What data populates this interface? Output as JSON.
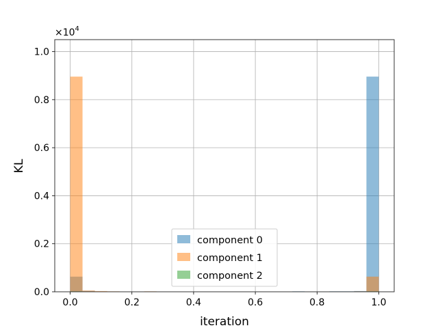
{
  "chart_data": {
    "type": "bar",
    "histogram": true,
    "xlabel": "iteration",
    "ylabel": "KL",
    "y_scale_label": "×10",
    "y_scale_exponent": "4",
    "xlim": [
      -0.05,
      1.05
    ],
    "ylim": [
      0,
      1.05
    ],
    "grid": true,
    "legend_position": "lower-center",
    "x_ticks": [
      0.0,
      0.2,
      0.4,
      0.6,
      0.8,
      1.0
    ],
    "x_tick_labels": [
      "0.0",
      "0.2",
      "0.4",
      "0.6",
      "0.8",
      "1.0"
    ],
    "y_ticks": [
      0.0,
      0.2,
      0.4,
      0.6,
      0.8,
      1.0
    ],
    "y_tick_labels": [
      "0.0",
      "0.2",
      "0.4",
      "0.6",
      "0.8",
      "1.0"
    ],
    "bin_edges": [
      0.0,
      0.04,
      0.08,
      0.12,
      0.16,
      0.2,
      0.24,
      0.28,
      0.32,
      0.36,
      0.4,
      0.44,
      0.48,
      0.52,
      0.56,
      0.6,
      0.64,
      0.68,
      0.72,
      0.76,
      0.8,
      0.84,
      0.88,
      0.92,
      0.96,
      1.0
    ],
    "series": [
      {
        "name": "component 0",
        "color": "#1f77b4",
        "values": [
          0.063,
          0.004,
          0,
          0,
          0,
          0,
          0,
          0,
          0,
          0,
          0,
          0,
          0,
          0,
          0,
          0,
          0,
          0,
          0.002,
          0,
          0,
          0.002,
          0.002,
          0.003,
          0.896
        ]
      },
      {
        "name": "component 1",
        "color": "#ff7f0e",
        "values": [
          0.896,
          0.005,
          0.003,
          0.002,
          0,
          0,
          0.002,
          0,
          0,
          0,
          0,
          0,
          0,
          0,
          0,
          0,
          0,
          0,
          0,
          0,
          0,
          0,
          0,
          0.002,
          0.063
        ]
      },
      {
        "name": "component 2",
        "color": "#2ca02c",
        "values": [
          0.002,
          0.001,
          0,
          0,
          0,
          0,
          0,
          0,
          0,
          0,
          0,
          0,
          0,
          0,
          0,
          0,
          0,
          0,
          0,
          0,
          0,
          0,
          0,
          0.001,
          0.002
        ]
      }
    ]
  }
}
